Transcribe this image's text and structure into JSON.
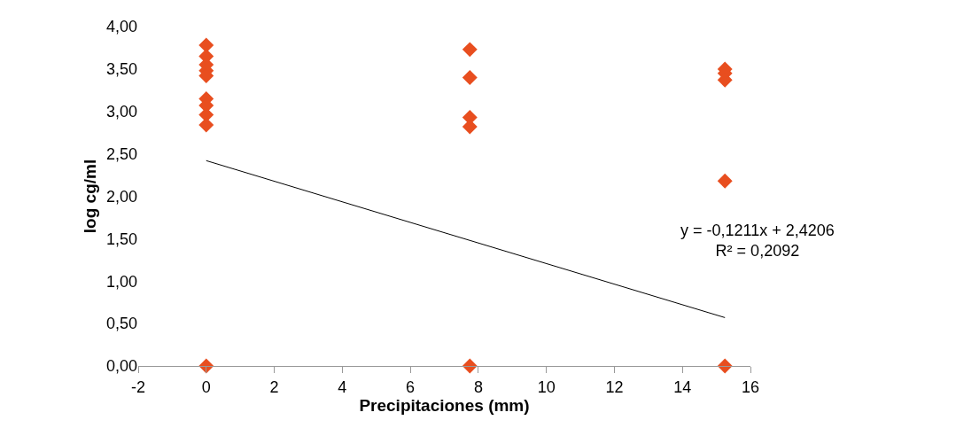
{
  "chart_data": {
    "type": "scatter",
    "xlabel": "Precipitaciones (mm)",
    "ylabel": "log cg/ml",
    "series": [
      {
        "color": "#e84e1f",
        "marker": "diamond",
        "x": [
          0,
          0,
          0,
          0,
          0,
          0,
          0,
          0,
          0,
          0,
          7.75,
          7.75,
          7.75,
          7.75,
          7.75,
          15.25,
          15.25,
          15.25,
          15.25,
          15.25
        ],
        "values": [
          3.78,
          3.65,
          3.55,
          3.48,
          3.42,
          3.15,
          3.07,
          2.96,
          2.84,
          0,
          3.73,
          3.4,
          2.93,
          2.82,
          0,
          3.5,
          3.45,
          3.37,
          2.18,
          0
        ]
      },
      {
        "type": "line",
        "color": "#000000",
        "marker": "none",
        "x": [
          0,
          15.25
        ],
        "values": [
          2.42,
          0.57
        ]
      }
    ],
    "xlim": [
      -2,
      16
    ],
    "xticks": [
      -2,
      0,
      2,
      4,
      6,
      8,
      10,
      12,
      14,
      16
    ],
    "ylim": [
      0,
      4
    ],
    "yticks": [
      {
        "value": 0,
        "label": "0,00"
      },
      {
        "value": 0.5,
        "label": "0,50"
      },
      {
        "value": 1,
        "label": "1,00"
      },
      {
        "value": 1.5,
        "label": "1,50"
      },
      {
        "value": 2,
        "label": "2,00"
      },
      {
        "value": 2.5,
        "label": "2,50"
      },
      {
        "value": 3,
        "label": "3,00"
      },
      {
        "value": 3.5,
        "label": "3,50"
      },
      {
        "value": 4,
        "label": "4,00"
      }
    ],
    "annotations": [
      "y = -0,1211x + 2,4206\nR² = 0,2092"
    ],
    "grid": false
  }
}
